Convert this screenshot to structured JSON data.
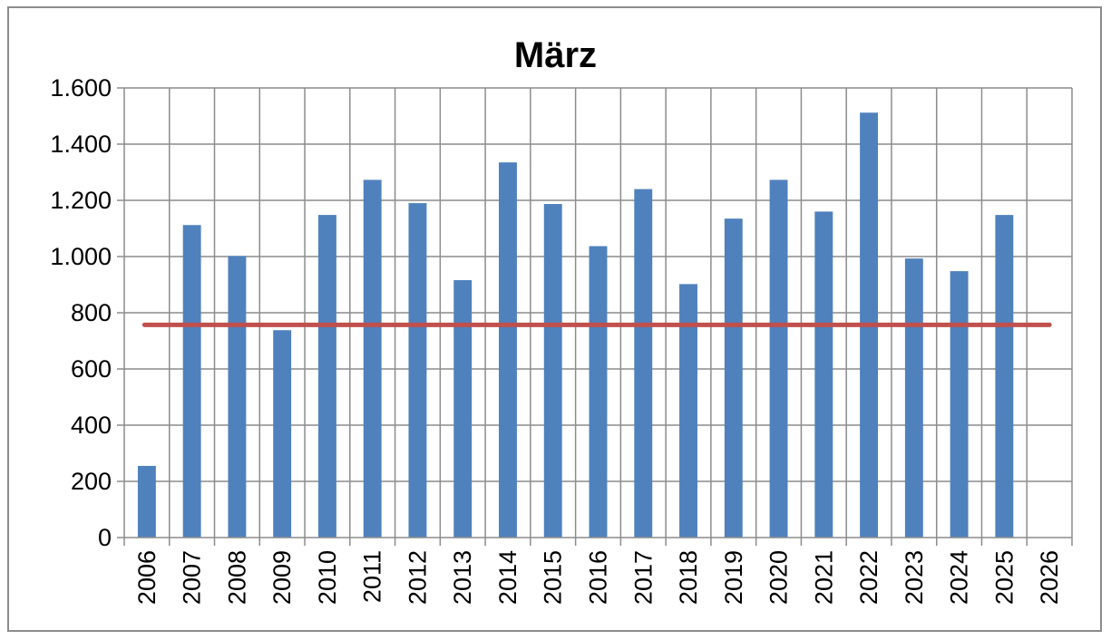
{
  "chart_data": {
    "type": "bar",
    "title": "März",
    "categories": [
      "2006",
      "2007",
      "2008",
      "2009",
      "2010",
      "2011",
      "2012",
      "2013",
      "2014",
      "2015",
      "2016",
      "2017",
      "2018",
      "2019",
      "2020",
      "2021",
      "2022",
      "2023",
      "2024",
      "2025",
      "2026"
    ],
    "series": [
      {
        "values": [
          255,
          1112,
          1002,
          738,
          1148,
          1273,
          1190,
          916,
          1335,
          1187,
          1037,
          1240,
          902,
          1135,
          1273,
          1160,
          1512,
          993,
          948,
          1148,
          null
        ],
        "color": "#4f81bd"
      }
    ],
    "reference_line": {
      "value": 757,
      "color": "#c0504d"
    },
    "ylim": [
      0,
      1600
    ],
    "y_ticks": [
      0,
      200,
      400,
      600,
      800,
      1000,
      1200,
      1400,
      1600
    ],
    "y_tick_labels": [
      "0",
      "200",
      "400",
      "600",
      "800",
      "1.000",
      "1.200",
      "1.400",
      "1.600"
    ],
    "grid": true,
    "legend": "none",
    "xlabel": "",
    "ylabel": ""
  }
}
